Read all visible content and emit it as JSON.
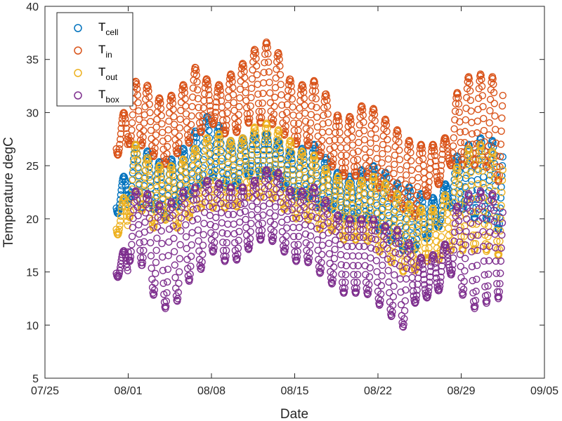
{
  "chart_data": {
    "type": "scatter",
    "title": "",
    "xlabel": "Date",
    "ylabel": "Temperature degC",
    "xlim": [
      "2015-07-25",
      "2015-09-05"
    ],
    "ylim": [
      5,
      40
    ],
    "x_ticks": [
      "07/25",
      "08/01",
      "08/08",
      "08/15",
      "08/22",
      "08/29",
      "09/05"
    ],
    "y_ticks": [
      "5",
      "10",
      "15",
      "20",
      "25",
      "30",
      "35",
      "40"
    ],
    "legend_position": "top-left",
    "marker": "open-circle",
    "data_start": "2015-07-31",
    "data_end": "2015-09-01",
    "daily_x": [
      "07/31",
      "08/01",
      "08/02",
      "08/03",
      "08/04",
      "08/05",
      "08/06",
      "08/07",
      "08/08",
      "08/09",
      "08/10",
      "08/11",
      "08/12",
      "08/13",
      "08/14",
      "08/15",
      "08/16",
      "08/17",
      "08/18",
      "08/19",
      "08/20",
      "08/21",
      "08/22",
      "08/23",
      "08/24",
      "08/25",
      "08/26",
      "08/27",
      "08/28",
      "08/29",
      "08/30",
      "08/31",
      "09/01"
    ],
    "series": [
      {
        "name": "T",
        "subscript": "cell",
        "color": "#0072BD",
        "min": [
          20.5,
          22,
          21,
          21,
          20,
          21,
          22,
          23,
          24,
          23,
          23,
          24,
          24,
          24,
          23,
          22,
          22,
          21,
          21,
          20,
          20,
          20,
          19,
          18,
          17,
          17,
          18,
          19,
          21,
          21,
          20,
          20,
          19
        ],
        "max": [
          24,
          27,
          27,
          26,
          25,
          26,
          27,
          29,
          30,
          28,
          27,
          28,
          28,
          28,
          27,
          26,
          27,
          27,
          25,
          24,
          24,
          25,
          25,
          24,
          23,
          23,
          22,
          22,
          24,
          27,
          27,
          28,
          27
        ]
      },
      {
        "name": "T",
        "subscript": "in",
        "color": "#D95319",
        "min": [
          26,
          27,
          27,
          26,
          25,
          26,
          27,
          28,
          29,
          28,
          28,
          29,
          29,
          29,
          28,
          27,
          27,
          26,
          25,
          24,
          24,
          24,
          23,
          22,
          21,
          20,
          22,
          23,
          25,
          25,
          25,
          25,
          23.5
        ],
        "max": [
          30,
          32,
          33.5,
          32,
          31,
          32,
          33,
          35,
          32,
          33,
          34,
          35,
          36.5,
          36.7,
          35,
          32,
          33,
          33,
          31,
          29,
          30,
          31,
          30,
          29,
          28,
          27,
          27,
          27,
          28,
          34,
          33,
          34,
          33
        ]
      },
      {
        "name": "T",
        "subscript": "out",
        "color": "#EDB120",
        "min": [
          18.5,
          20,
          21,
          19,
          20,
          19,
          20,
          21,
          21,
          21,
          21,
          22,
          22,
          22,
          21,
          20,
          20,
          19,
          19,
          18,
          18,
          18,
          17,
          16,
          15,
          15,
          16,
          16,
          17,
          17,
          17,
          17,
          16.5
        ],
        "max": [
          22,
          27,
          27,
          25,
          25,
          25,
          26,
          27,
          28,
          28,
          27,
          28,
          29,
          29,
          28,
          27,
          26,
          26,
          24,
          24,
          23,
          24,
          24,
          23,
          22,
          21,
          21,
          21,
          23,
          26,
          27,
          27,
          26
        ]
      },
      {
        "name": "T",
        "subscript": "box",
        "color": "#7E2F8E",
        "min": [
          14.5,
          16,
          16,
          13,
          11.5,
          12,
          14,
          15,
          17,
          16,
          16,
          17,
          18,
          18,
          17,
          16,
          16,
          15,
          14,
          13,
          13,
          13,
          12,
          11,
          9.5,
          12,
          12.5,
          13,
          15,
          13,
          11.5,
          12,
          12.5
        ],
        "max": [
          17,
          22,
          23,
          22,
          21,
          22,
          23,
          23,
          24,
          23,
          23,
          23,
          24,
          25,
          24,
          22,
          23,
          23,
          21,
          20,
          20,
          20,
          20,
          19,
          19,
          17,
          16,
          17,
          18,
          23,
          22,
          23,
          22
        ]
      }
    ]
  }
}
